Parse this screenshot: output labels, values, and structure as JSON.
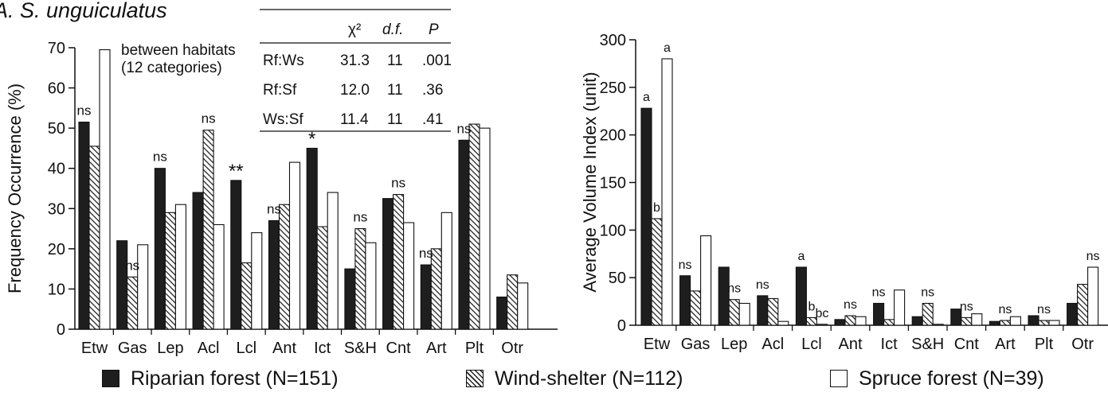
{
  "panel_label": "A. S. unguiculatus",
  "colors": {
    "riparian": "#1e1e1e",
    "windshelter_stripe": "#222222",
    "spruce": "#ffffff",
    "axis": "#111111"
  },
  "legend": [
    {
      "label": "Riparian forest (N=151)",
      "pattern": "solid"
    },
    {
      "label": "Wind-shelter (N=112)",
      "pattern": "hatch"
    },
    {
      "label": "Spruce forest (N=39)",
      "pattern": "empty"
    }
  ],
  "stats_table": {
    "title_lines": [
      "between habitats",
      "(12 categories)"
    ],
    "headers": [
      "χ²",
      "d.f.",
      "P"
    ],
    "rows": [
      {
        "pair": "Rf:Ws",
        "chi2": "31.3",
        "df": "11",
        "p": ".001"
      },
      {
        "pair": "Rf:Sf",
        "chi2": "12.0",
        "df": "11",
        "p": ".36"
      },
      {
        "pair": "Ws:Sf",
        "chi2": "11.4",
        "df": "11",
        "p": ".41"
      }
    ]
  },
  "chart_data": [
    {
      "type": "bar",
      "ylabel": "Frequency Occurrence (%)",
      "ylim": [
        0,
        70
      ],
      "yticks": [
        0,
        10,
        20,
        30,
        40,
        50,
        60,
        70
      ],
      "categories": [
        "Etw",
        "Gas",
        "Lep",
        "Acl",
        "Lcl",
        "Ant",
        "Ict",
        "S&H",
        "Cnt",
        "Art",
        "Plt",
        "Otr"
      ],
      "series": [
        {
          "name": "Riparian forest (N=151)",
          "values": [
            51.5,
            22,
            40,
            34,
            37,
            27,
            45,
            15,
            32.5,
            16,
            47,
            8
          ]
        },
        {
          "name": "Wind-shelter (N=112)",
          "values": [
            45.5,
            13,
            29,
            49.5,
            16.5,
            31,
            25.5,
            25,
            33.5,
            20,
            51,
            13.5
          ]
        },
        {
          "name": "Spruce forest (N=39)",
          "values": [
            69.5,
            21,
            31,
            26,
            24,
            41.5,
            34,
            21.5,
            26.5,
            29,
            50,
            11.5
          ]
        }
      ],
      "annotations": [
        {
          "category": "Etw",
          "series": 0,
          "text": "ns"
        },
        {
          "category": "Gas",
          "series": 1,
          "text": "ns"
        },
        {
          "category": "Lep",
          "series": 0,
          "text": "ns"
        },
        {
          "category": "Acl",
          "series": 1,
          "text": "ns"
        },
        {
          "category": "Lcl",
          "series": 0,
          "text": "**"
        },
        {
          "category": "Ant",
          "series": 0,
          "text": "ns"
        },
        {
          "category": "Ict",
          "series": 0,
          "text": "*"
        },
        {
          "category": "S&H",
          "series": 1,
          "text": "ns"
        },
        {
          "category": "Cnt",
          "series": 1,
          "text": "ns"
        },
        {
          "category": "Art",
          "series": 0,
          "text": "ns"
        },
        {
          "category": "Plt",
          "series": 0,
          "text": "ns"
        }
      ]
    },
    {
      "type": "bar",
      "ylabel": "Average Volume Index (unit)",
      "ylim": [
        0,
        300
      ],
      "yticks": [
        0,
        50,
        100,
        150,
        200,
        250,
        300
      ],
      "categories": [
        "Etw",
        "Gas",
        "Lep",
        "Acl",
        "Lcl",
        "Ant",
        "Ict",
        "S&H",
        "Cnt",
        "Art",
        "Plt",
        "Otr"
      ],
      "series": [
        {
          "name": "Riparian forest (N=151)",
          "values": [
            228,
            52,
            61,
            31,
            61,
            6,
            23,
            9,
            17,
            4,
            10,
            23
          ]
        },
        {
          "name": "Wind-shelter (N=112)",
          "values": [
            112,
            36,
            27,
            28,
            8,
            10,
            6,
            23,
            8,
            5,
            5,
            43
          ]
        },
        {
          "name": "Spruce forest (N=39)",
          "values": [
            280,
            94,
            23,
            4,
            1,
            9,
            37,
            1,
            12,
            9,
            5,
            61
          ]
        }
      ],
      "annotations": [
        {
          "category": "Etw",
          "series": 0,
          "text": "a"
        },
        {
          "category": "Etw",
          "series": 1,
          "text": "b"
        },
        {
          "category": "Etw",
          "series": 2,
          "text": "a"
        },
        {
          "category": "Gas",
          "series": 0,
          "text": "ns"
        },
        {
          "category": "Lep",
          "series": 1,
          "text": "ns"
        },
        {
          "category": "Acl",
          "series": 0,
          "text": "ns"
        },
        {
          "category": "Lcl",
          "series": 0,
          "text": "a"
        },
        {
          "category": "Lcl",
          "series": 1,
          "text": "b"
        },
        {
          "category": "Lcl",
          "series": 2,
          "text": "bc"
        },
        {
          "category": "Ant",
          "series": 1,
          "text": "ns"
        },
        {
          "category": "Ict",
          "series": 0,
          "text": "ns"
        },
        {
          "category": "S&H",
          "series": 1,
          "text": "ns"
        },
        {
          "category": "Cnt",
          "series": 1,
          "text": "ns"
        },
        {
          "category": "Art",
          "series": 1,
          "text": "ns"
        },
        {
          "category": "Plt",
          "series": 1,
          "text": "ns"
        },
        {
          "category": "Otr",
          "series": 2,
          "text": "ns"
        }
      ]
    }
  ]
}
